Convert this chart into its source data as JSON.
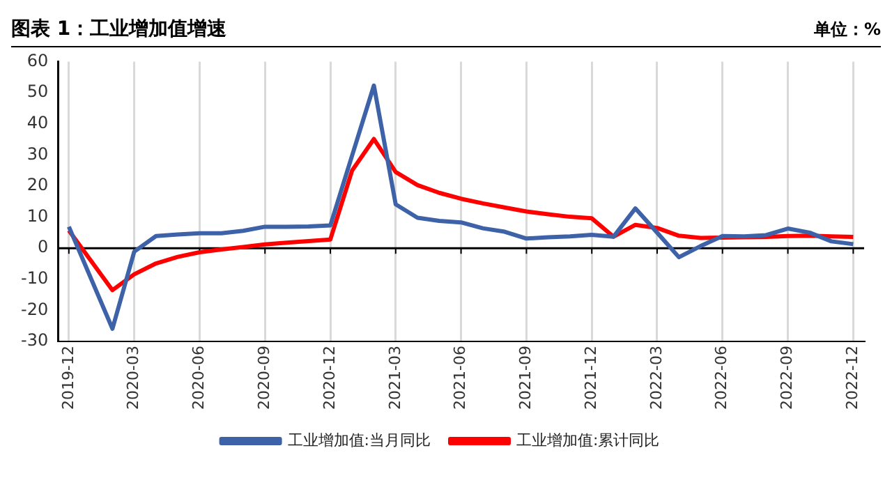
{
  "chart_data": {
    "type": "line",
    "title": "图表 1：工业增加值增速",
    "annotations": [
      "单位：%"
    ],
    "categories": [
      "2019-12",
      null,
      null,
      "2020-03",
      null,
      null,
      "2020-06",
      null,
      null,
      "2020-09",
      null,
      null,
      "2020-12",
      null,
      null,
      "2021-03",
      null,
      null,
      "2021-06",
      null,
      null,
      "2021-09",
      null,
      null,
      "2021-12",
      null,
      null,
      "2022-03",
      null,
      null,
      "2022-06",
      null,
      null,
      "2022-09",
      null,
      null,
      "2022-12"
    ],
    "series": [
      {
        "name": "工业增加值:当月同比",
        "color": "#3d62a8",
        "values": [
          6.9,
          null,
          -25.9,
          -1.1,
          3.9,
          4.4,
          4.8,
          4.8,
          5.6,
          6.9,
          6.9,
          7.0,
          7.3,
          null,
          52.3,
          14.1,
          9.8,
          8.8,
          8.3,
          6.4,
          5.3,
          3.1,
          3.5,
          3.8,
          4.3,
          3.7,
          12.8,
          5.0,
          -2.9,
          0.7,
          3.9,
          3.8,
          4.2,
          6.3,
          5.0,
          2.2,
          1.3
        ]
      },
      {
        "name": "工业增加值:累计同比",
        "color": "#ff0000",
        "values": [
          5.7,
          null,
          -13.5,
          -8.4,
          -4.9,
          -2.8,
          -1.3,
          -0.4,
          0.4,
          1.2,
          1.8,
          2.3,
          2.8,
          25,
          35.1,
          24.5,
          20.3,
          17.8,
          15.9,
          14.4,
          13.1,
          11.8,
          10.9,
          10.1,
          9.6,
          3.7,
          7.5,
          6.5,
          4.0,
          3.3,
          3.4,
          3.5,
          3.6,
          3.9,
          4.0,
          3.8,
          3.6
        ]
      }
    ],
    "ylim": [
      -30,
      60
    ],
    "yticks": [
      -30,
      -20,
      -10,
      0,
      10,
      20,
      30,
      40,
      50,
      60
    ],
    "grid": "x",
    "legend": "bottom",
    "marker": "none",
    "line_style": "solid"
  }
}
